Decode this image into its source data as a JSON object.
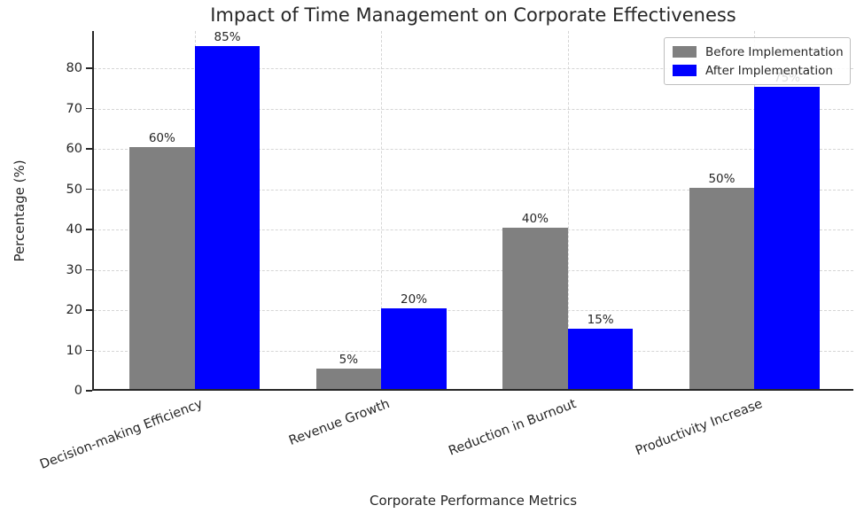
{
  "chart_data": {
    "type": "bar",
    "title": "Impact of Time Management on Corporate Effectiveness",
    "xlabel": "Corporate Performance Metrics",
    "ylabel": "Percentage (%)",
    "categories": [
      "Decision-making Efficiency",
      "Revenue Growth",
      "Reduction in Burnout",
      "Productivity Increase"
    ],
    "series": [
      {
        "name": "Before Implementation",
        "color": "#808080",
        "values": [
          60,
          5,
          40,
          50
        ],
        "value_labels": [
          "60%",
          "5%",
          "40%",
          "50%"
        ]
      },
      {
        "name": "After Implementation",
        "color": "#0000ff",
        "values": [
          85,
          20,
          15,
          75
        ],
        "value_labels": [
          "85%",
          "20%",
          "15%",
          "75%"
        ]
      }
    ],
    "yticks": [
      "0",
      "10",
      "20",
      "30",
      "40",
      "50",
      "60",
      "70",
      "80"
    ],
    "ylim": [
      0,
      89.25
    ],
    "bar_width_fraction": 0.35,
    "grid": {
      "style": "dashed",
      "horizontal": true,
      "vertical": true,
      "color": "#d5d5d5"
    },
    "legend_position": "upper right",
    "colors": {
      "axis": "#262626",
      "text": "#262626",
      "background": "#ffffff"
    }
  }
}
